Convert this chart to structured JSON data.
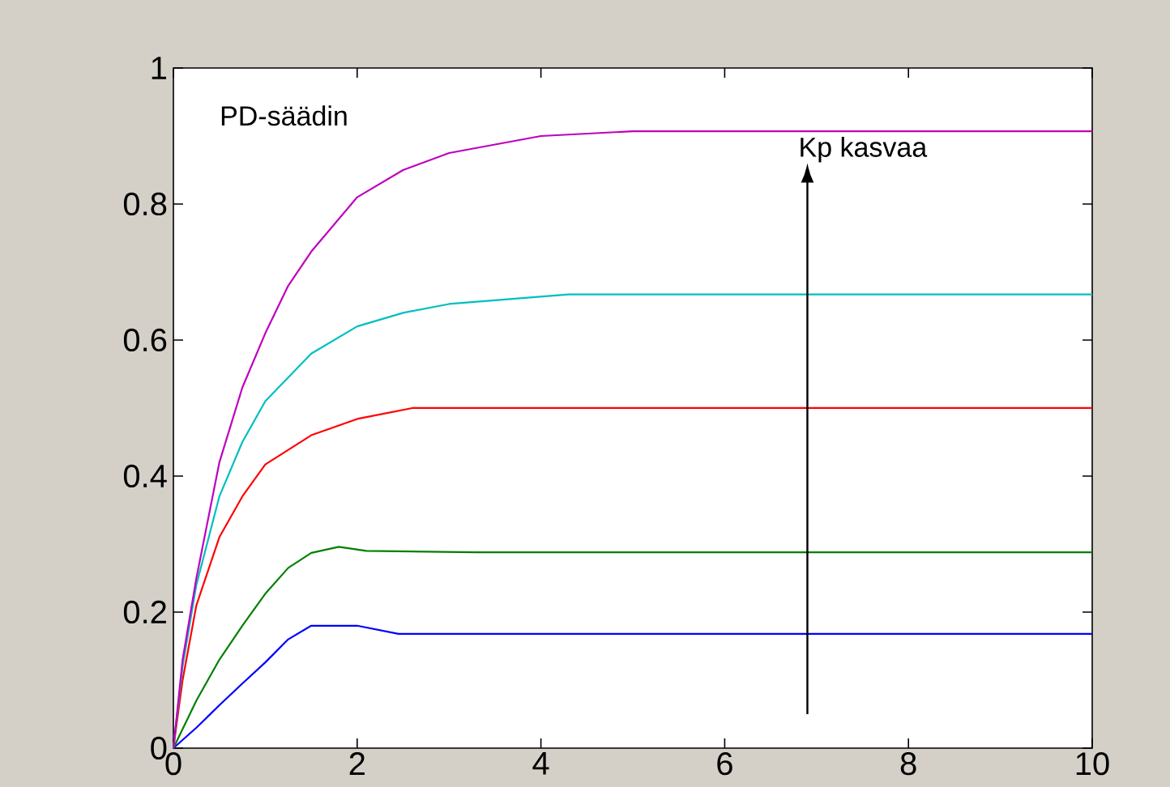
{
  "chart_data": {
    "type": "line",
    "annotations": [
      "PD-säädin",
      "Kp kasvaa"
    ],
    "xlim": [
      0,
      10
    ],
    "ylim": [
      0,
      1
    ],
    "xticks": [
      0,
      2,
      4,
      6,
      8,
      10
    ],
    "yticks": [
      0,
      0.2,
      0.4,
      0.6,
      0.8,
      1
    ],
    "grid": false,
    "marker": "none",
    "line_style": "solid",
    "series": [
      {
        "color": "#0000ff",
        "x": [
          0,
          0.25,
          0.5,
          0.75,
          1,
          1.25,
          1.5,
          2,
          2.45,
          10
        ],
        "values": [
          0,
          0.03,
          0.063,
          0.095,
          0.126,
          0.16,
          0.18,
          0.18,
          0.168,
          0.168
        ]
      },
      {
        "color": "#008000",
        "x": [
          0,
          0.25,
          0.5,
          0.75,
          1,
          1.25,
          1.5,
          1.8,
          2.1,
          3.3,
          10
        ],
        "values": [
          0,
          0.07,
          0.13,
          0.18,
          0.227,
          0.265,
          0.287,
          0.296,
          0.29,
          0.288,
          0.288
        ]
      },
      {
        "color": "#ff0000",
        "x": [
          0,
          0.1,
          0.25,
          0.5,
          0.75,
          1,
          1.5,
          2,
          2.6,
          10
        ],
        "values": [
          0,
          0.1,
          0.21,
          0.31,
          0.37,
          0.417,
          0.46,
          0.484,
          0.5,
          0.5
        ]
      },
      {
        "color": "#00bfbf",
        "x": [
          0,
          0.1,
          0.25,
          0.5,
          0.75,
          1,
          1.5,
          2,
          2.5,
          3,
          4.3,
          10
        ],
        "values": [
          0,
          0.12,
          0.24,
          0.37,
          0.45,
          0.51,
          0.58,
          0.62,
          0.64,
          0.653,
          0.667,
          0.667
        ]
      },
      {
        "color": "#bf00bf",
        "x": [
          0,
          0.1,
          0.25,
          0.5,
          0.75,
          1,
          1.25,
          1.5,
          2,
          2.5,
          3,
          4,
          5,
          10
        ],
        "values": [
          0,
          0.13,
          0.25,
          0.42,
          0.53,
          0.61,
          0.68,
          0.73,
          0.81,
          0.85,
          0.875,
          0.9,
          0.907,
          0.907
        ]
      }
    ]
  }
}
